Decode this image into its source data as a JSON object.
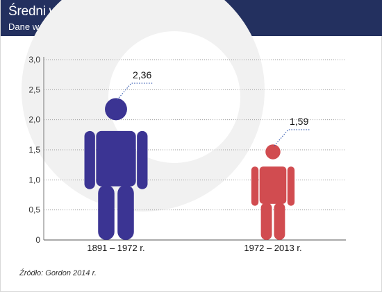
{
  "header": {
    "title": "Średni wzrost PKB na godzinę pracy",
    "subtitle": "Dane w proc."
  },
  "source": "Źródło: Gordon 2014 r.",
  "colors": {
    "header_bg": "#23305f",
    "series_1": "#3b3493",
    "series_2": "#d14c50",
    "leader_line": "#3a5fb3",
    "watermark": "#f1f1f1"
  },
  "chart_data": {
    "type": "bar",
    "mark_style": "pictogram-person",
    "categories": [
      "1891 – 1972 r.",
      "1972 – 2013 r."
    ],
    "values": [
      2.36,
      1.59
    ],
    "value_labels": [
      "2,36",
      "1,59"
    ],
    "y_ticks": [
      "0",
      "0,5",
      "1,0",
      "1,5",
      "2,0",
      "2,5",
      "3,0"
    ],
    "y_tick_values": [
      0,
      0.5,
      1.0,
      1.5,
      2.0,
      2.5,
      3.0
    ],
    "ylim": [
      0,
      3.0
    ],
    "grid": "dotted horizontal",
    "legend": "none"
  }
}
